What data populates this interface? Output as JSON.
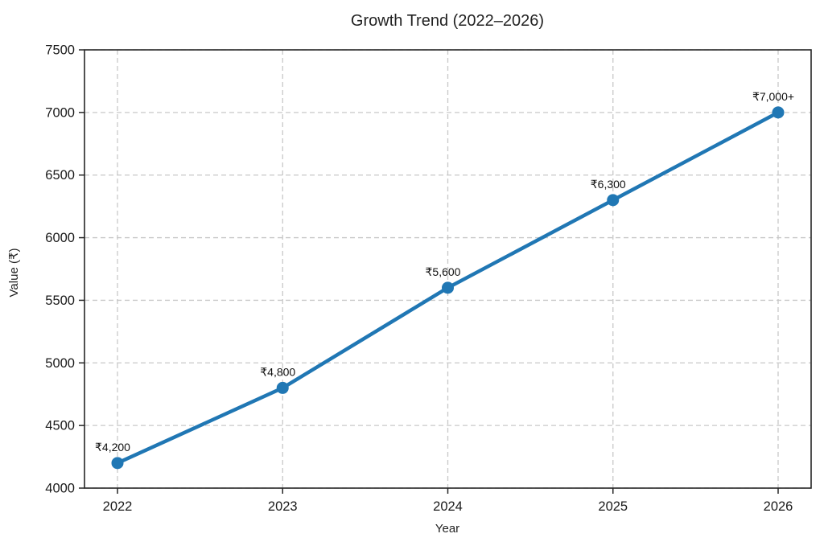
{
  "chart_data": {
    "type": "line",
    "title": "Growth Trend (2022–2026)",
    "xlabel": "Year",
    "ylabel": "Value (₹)",
    "categories": [
      "2022",
      "2023",
      "2024",
      "2025",
      "2026"
    ],
    "values": [
      4200,
      4800,
      5600,
      6300,
      7000
    ],
    "point_labels": [
      "₹4,200",
      "₹4,800",
      "₹5,600",
      "₹6,300",
      "₹7,000+"
    ],
    "ylim": [
      4000,
      7500
    ],
    "yticks": [
      4000,
      4500,
      5000,
      5500,
      6000,
      6500,
      7000,
      7500
    ],
    "grid": "dashed",
    "legend": "none",
    "colors": {
      "line": "#2077b4",
      "marker": "#2077b4",
      "grid": "#c8c8c8",
      "axis": "#262626",
      "text": "#1a1a1a"
    }
  }
}
